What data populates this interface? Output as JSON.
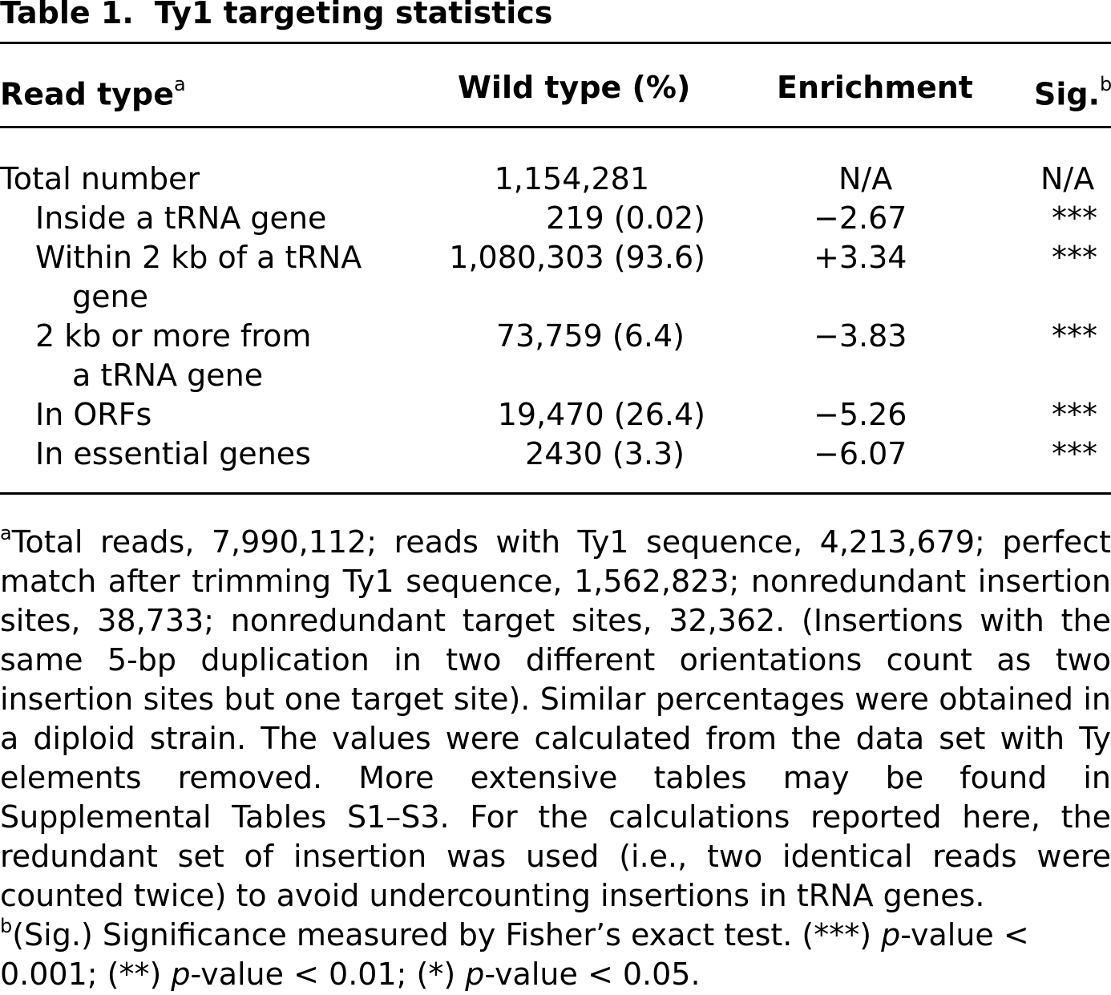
{
  "title": {
    "label": "Table 1.",
    "text": "Ty1 targeting statistics"
  },
  "table": {
    "headers": {
      "read_type": "Read type",
      "read_type_sup": "a",
      "wild_type": "Wild type (%)",
      "enrichment": "Enrichment",
      "sig": "Sig.",
      "sig_sup": "b"
    },
    "rows": [
      {
        "label": "Total number",
        "label2": "",
        "wild_type": "1,154,281",
        "enrichment": "N/A",
        "sig": "N/A"
      },
      {
        "label": "Inside a tRNA gene",
        "label2": "",
        "wild_type": "219 (0.02)",
        "enrichment": "−2.67",
        "sig": "***"
      },
      {
        "label": "Within 2 kb of a tRNA",
        "label2": "gene",
        "wild_type": "1,080,303 (93.6)",
        "enrichment": "+3.34",
        "sig": "***"
      },
      {
        "label": "2 kb or more from",
        "label2": "a tRNA gene",
        "wild_type": "73,759 (6.4)",
        "enrichment": "−3.83",
        "sig": "***"
      },
      {
        "label": "In ORFs",
        "label2": "",
        "wild_type": "19,470 (26.4)",
        "enrichment": "−5.26",
        "sig": "***"
      },
      {
        "label": "In essential genes",
        "label2": "",
        "wild_type": "2430 (3.3)",
        "enrichment": "−6.07",
        "sig": "***"
      }
    ]
  },
  "footnotes": {
    "a_marker": "a",
    "a_text": "Total reads, 7,990,112; reads with Ty1 sequence, 4,213,679; perfect match after trimming Ty1 sequence, 1,562,823; nonredundant insertion sites, 38,733; nonredundant target sites, 32,362. (Insertions with the same 5-bp duplication in two different orientations count as two insertion sites but one target site). Similar percentages were obtained in a diploid strain. The values were calculated from the data set with Ty elements removed. More extensive tables may be found in Supplemental Tables S1–S3. For the calculations reported here, the redundant set of insertion was used (i.e., two identical reads were counted twice) to avoid undercounting insertions in tRNA genes.",
    "b_marker": "b",
    "b_part1": "(Sig.) Significance measured by Fisher’s exact test. (***) ",
    "b_p1": "p",
    "b_part2": "-value < 0.001; (**) ",
    "b_p2": "p",
    "b_part3": "-value < 0.01; (*) ",
    "b_p3": "p",
    "b_part4": "-value < 0.05."
  }
}
